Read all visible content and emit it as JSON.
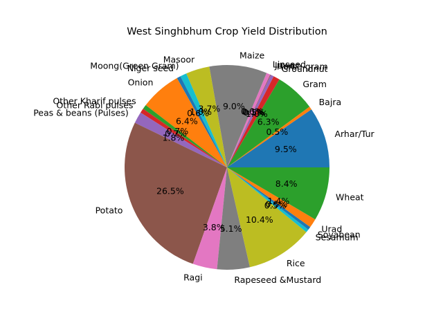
{
  "chart_data": {
    "type": "pie",
    "title": "West Singhbhum Crop Yield Distribution",
    "start_angle_deg": 0,
    "direction": "counterclockwise",
    "autopct_format": "%1.1f%%",
    "slices": [
      {
        "label": "Arhar/Tur",
        "value": 9.5,
        "pct_label": "9.5%",
        "color": "#1f77b4"
      },
      {
        "label": "Bajra",
        "value": 0.5,
        "pct_label": "0.5%",
        "color": "#ff7f0e"
      },
      {
        "label": "Gram",
        "value": 6.3,
        "pct_label": "6.3%",
        "color": "#2ca02c"
      },
      {
        "label": "Groundnut",
        "value": 1.0,
        "pct_label": "1.0%",
        "color": "#d62728"
      },
      {
        "label": "Horse-gram",
        "value": 0.5,
        "pct_label": "0.5%",
        "color": "#9467bd"
      },
      {
        "label": "Jowar",
        "value": 0.1,
        "pct_label": "0.1%",
        "color": "#8c564b"
      },
      {
        "label": "Linseed",
        "value": 0.6,
        "pct_label": "0.6%",
        "color": "#e377c2"
      },
      {
        "label": "Maize",
        "value": 9.0,
        "pct_label": "9.0%",
        "color": "#7f7f7f"
      },
      {
        "label": "Masoor",
        "value": 3.7,
        "pct_label": "3.7%",
        "color": "#bcbd22"
      },
      {
        "label": "Moong(Green Gram)",
        "value": 1.0,
        "pct_label": "1.0%",
        "color": "#17becf"
      },
      {
        "label": "Niger seed",
        "value": 0.6,
        "pct_label": "0.6%",
        "color": "#1f77b4"
      },
      {
        "label": "Onion",
        "value": 6.4,
        "pct_label": "6.4%",
        "color": "#ff7f0e"
      },
      {
        "label": "Other Kharif pulses",
        "value": 0.7,
        "pct_label": "0.7%",
        "color": "#2ca02c"
      },
      {
        "label": "Other Rabi pulses",
        "value": 0.7,
        "pct_label": "0.7%",
        "color": "#d62728"
      },
      {
        "label": "Peas & beans (Pulses)",
        "value": 1.8,
        "pct_label": "1.8%",
        "color": "#9467bd"
      },
      {
        "label": "Potato",
        "value": 26.5,
        "pct_label": "26.5%",
        "color": "#8c564b"
      },
      {
        "label": "Ragi",
        "value": 3.8,
        "pct_label": "3.8%",
        "color": "#e377c2"
      },
      {
        "label": "Rapeseed &Mustard",
        "value": 5.1,
        "pct_label": "5.1%",
        "color": "#7f7f7f"
      },
      {
        "label": "Rice",
        "value": 10.4,
        "pct_label": "10.4%",
        "color": "#bcbd22"
      },
      {
        "label": "Sesamum",
        "value": 0.5,
        "pct_label": "0.5%",
        "color": "#17becf"
      },
      {
        "label": "Soyabean",
        "value": 0.5,
        "pct_label": "0.5%",
        "color": "#1f77b4"
      },
      {
        "label": "Urad",
        "value": 1.4,
        "pct_label": "1.4%",
        "color": "#ff7f0e"
      },
      {
        "label": "Wheat",
        "value": 8.4,
        "pct_label": "8.4%",
        "color": "#2ca02c"
      }
    ]
  }
}
